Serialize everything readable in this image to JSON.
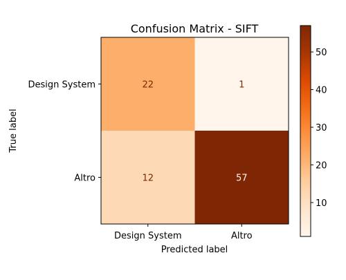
{
  "chart_data": {
    "type": "heatmap",
    "title": "Confusion Matrix - SIFT",
    "xlabel": "Predicted label",
    "ylabel": "True label",
    "x_categories": [
      "Design System",
      "Altro"
    ],
    "y_categories": [
      "Design System",
      "Altro"
    ],
    "values": [
      [
        22,
        1
      ],
      [
        12,
        57
      ]
    ],
    "colormap": "Oranges",
    "colorbar": {
      "min": 1,
      "max": 57,
      "ticks": [
        10,
        20,
        30,
        40,
        50
      ],
      "tick_labels": [
        "10",
        "20",
        "30",
        "40",
        "50"
      ]
    },
    "grid": false
  }
}
